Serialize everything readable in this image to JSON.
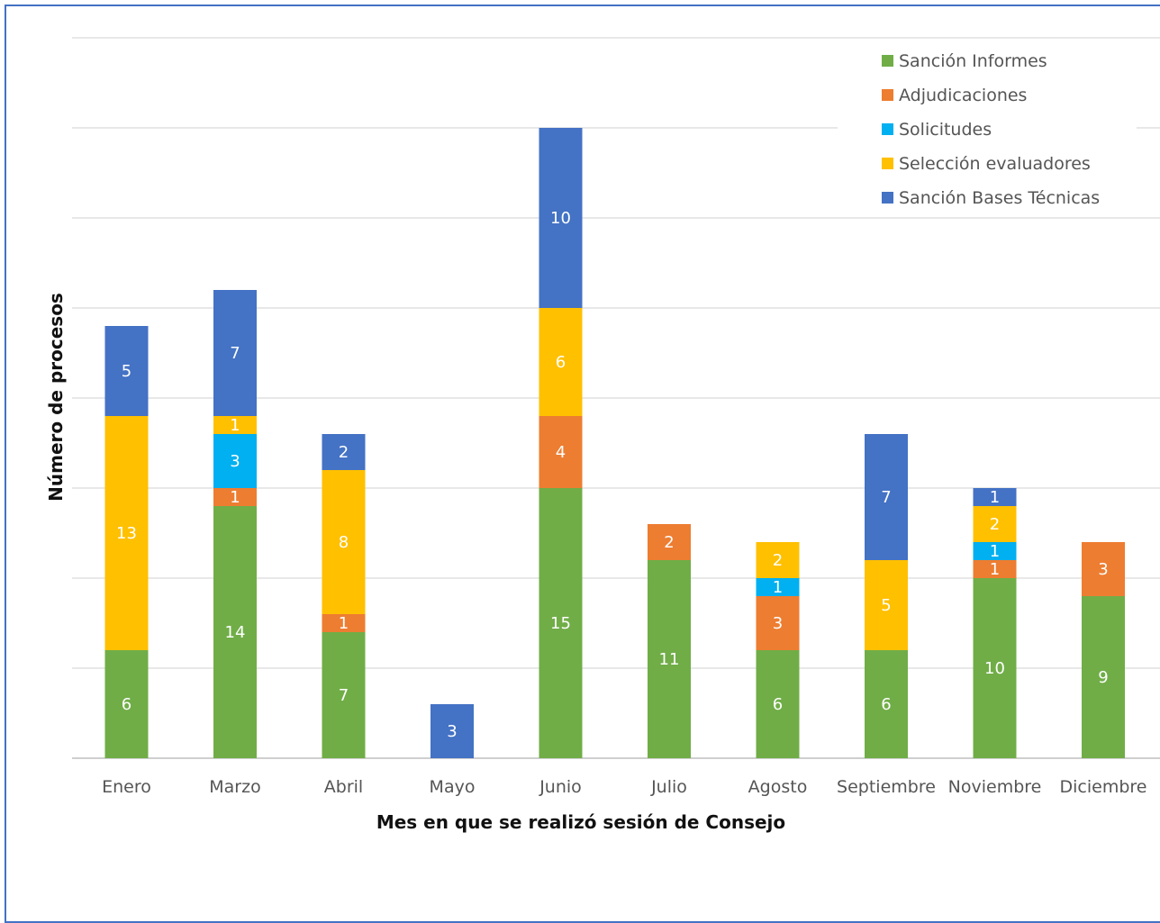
{
  "chart_data": {
    "type": "bar",
    "stacked": true,
    "categories": [
      "Enero",
      "Marzo",
      "Abril",
      "Mayo",
      "Junio",
      "Julio",
      "Agosto",
      "Septiembre",
      "Noviembre",
      "Diciembre"
    ],
    "series": [
      {
        "name": "Sanción Informes",
        "color": "#70ad47",
        "values": [
          6,
          14,
          7,
          0,
          15,
          11,
          6,
          6,
          10,
          9
        ]
      },
      {
        "name": "Adjudicaciones",
        "color": "#ed7d31",
        "values": [
          0,
          1,
          1,
          0,
          4,
          2,
          3,
          0,
          1,
          3
        ]
      },
      {
        "name": "Solicitudes",
        "color": "#00b0f0",
        "values": [
          0,
          3,
          0,
          0,
          0,
          0,
          1,
          0,
          1,
          0
        ]
      },
      {
        "name": "Selección evaluadores",
        "color": "#ffc000",
        "values": [
          13,
          1,
          8,
          0,
          6,
          0,
          2,
          5,
          2,
          0
        ]
      },
      {
        "name": "Sanción Bases Técnicas",
        "color": "#4472c4",
        "values": [
          5,
          7,
          2,
          3,
          10,
          0,
          0,
          7,
          1,
          0
        ]
      }
    ],
    "xlabel": "Mes en que se realizó sesión de Consejo",
    "ylabel": "Número de procesos",
    "ylim": [
      0,
      40
    ],
    "grid": true,
    "legend": "top-right"
  }
}
